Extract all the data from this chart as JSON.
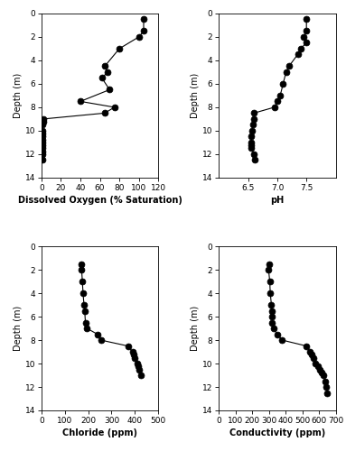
{
  "do_depth": [
    0.5,
    1.5,
    2.0,
    3.0,
    4.5,
    5.0,
    5.5,
    6.5,
    7.5,
    8.0,
    8.5,
    9.0,
    9.25,
    9.5,
    10.0,
    10.25,
    10.5,
    10.75,
    11.0,
    11.25,
    11.5,
    11.75,
    12.0,
    12.5
  ],
  "do_values": [
    105,
    105,
    100,
    80,
    65,
    68,
    62,
    70,
    40,
    75,
    65,
    2,
    2,
    1,
    1,
    1,
    1,
    1,
    1,
    1,
    1,
    1,
    1,
    1
  ],
  "ph_depth": [
    0.5,
    1.5,
    2.0,
    2.5,
    3.0,
    3.5,
    4.5,
    5.0,
    6.0,
    7.0,
    7.5,
    8.0,
    8.5,
    9.0,
    9.5,
    10.0,
    10.5,
    11.0,
    11.25,
    11.5,
    12.0,
    12.5
  ],
  "ph_values": [
    7.5,
    7.5,
    7.45,
    7.5,
    7.4,
    7.35,
    7.2,
    7.15,
    7.1,
    7.05,
    7.0,
    6.95,
    6.6,
    6.6,
    6.58,
    6.57,
    6.56,
    6.55,
    6.55,
    6.56,
    6.6,
    6.62
  ],
  "cl_depth": [
    1.5,
    2.0,
    3.0,
    4.0,
    5.0,
    5.5,
    6.5,
    7.0,
    7.5,
    8.0,
    8.5,
    9.0,
    9.25,
    9.5,
    10.0,
    10.25,
    10.5,
    11.0
  ],
  "cl_values": [
    170,
    172,
    175,
    178,
    182,
    185,
    188,
    195,
    240,
    255,
    370,
    390,
    395,
    400,
    410,
    415,
    420,
    425
  ],
  "cond_depth": [
    1.5,
    2.0,
    3.0,
    4.0,
    5.0,
    5.5,
    6.0,
    6.5,
    7.0,
    7.5,
    8.0,
    8.5,
    9.0,
    9.25,
    9.5,
    10.0,
    10.25,
    10.5,
    10.75,
    11.0,
    11.5,
    12.0,
    12.5
  ],
  "cond_values": [
    300,
    298,
    305,
    308,
    315,
    318,
    318,
    320,
    328,
    350,
    380,
    525,
    545,
    555,
    565,
    580,
    595,
    605,
    615,
    625,
    635,
    645,
    650
  ],
  "do_xlim": [
    0,
    120
  ],
  "do_xticks": [
    0,
    20,
    40,
    60,
    80,
    100,
    120
  ],
  "ph_xlim": [
    6,
    8
  ],
  "ph_xticks": [
    6.5,
    7.0,
    7.5
  ],
  "cl_xlim": [
    0,
    500
  ],
  "cl_xticks": [
    0,
    100,
    200,
    300,
    400,
    500
  ],
  "cond_xlim": [
    0,
    700
  ],
  "cond_xticks": [
    0,
    100,
    200,
    300,
    400,
    500,
    600,
    700
  ],
  "ylim": [
    14,
    0
  ],
  "yticks": [
    0,
    2,
    4,
    6,
    8,
    10,
    12,
    14
  ],
  "do_xlabel": "Dissolved Oxygen (% Saturation)",
  "ph_xlabel": "pH",
  "cl_xlabel": "Chloride (ppm)",
  "cond_xlabel": "Conductivity (ppm)",
  "ylabel": "Depth (m)",
  "marker_size": 5,
  "label_fontsize": 7,
  "tick_fontsize": 6.5
}
